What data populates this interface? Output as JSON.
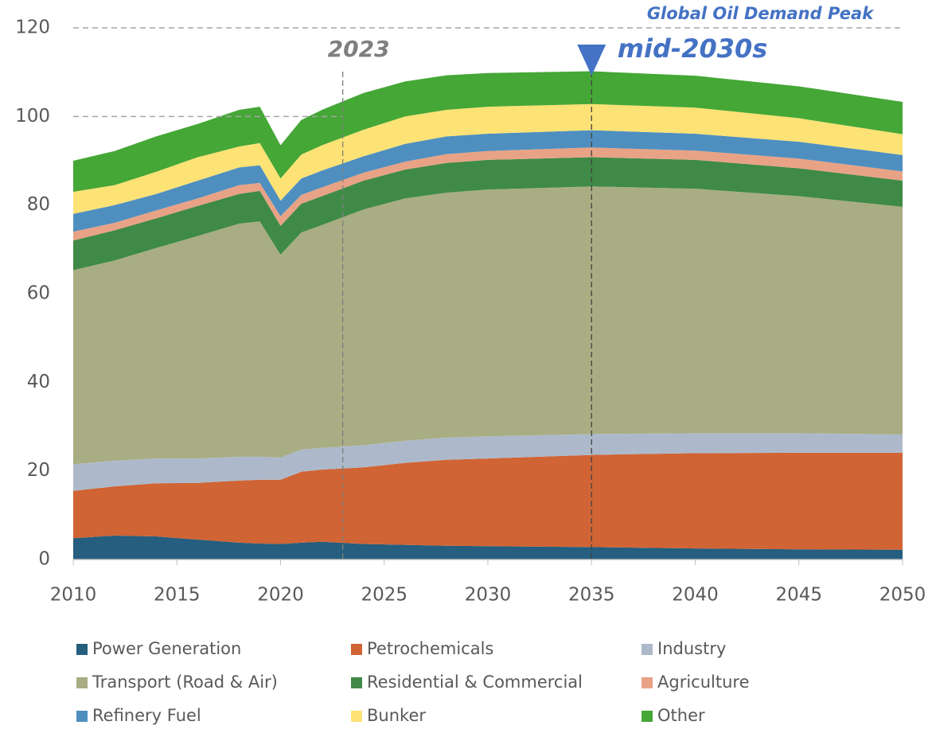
{
  "chart_data": {
    "type": "stacked_area",
    "x": [
      2010,
      2012,
      2014,
      2016,
      2018,
      2019,
      2020,
      2021,
      2022,
      2024,
      2026,
      2028,
      2030,
      2035,
      2040,
      2045,
      2050
    ],
    "series": [
      {
        "name": "Power Generation",
        "color": "#255e7e",
        "values": [
          4.8,
          5.4,
          5.2,
          4.5,
          3.8,
          3.6,
          3.5,
          3.8,
          4.0,
          3.5,
          3.3,
          3.1,
          3.0,
          2.8,
          2.5,
          2.3,
          2.2
        ]
      },
      {
        "name": "Petrochemicals",
        "color": "#d06434",
        "values": [
          10.7,
          11.1,
          12.0,
          12.8,
          14.0,
          14.4,
          14.5,
          16.0,
          16.3,
          17.3,
          18.5,
          19.4,
          19.8,
          20.8,
          21.5,
          21.8,
          21.9
        ]
      },
      {
        "name": "Industry",
        "color": "#adb9ca",
        "values": [
          6.0,
          5.8,
          5.6,
          5.5,
          5.4,
          5.2,
          5.0,
          5.0,
          4.9,
          5.0,
          5.0,
          5.0,
          5.0,
          4.7,
          4.5,
          4.4,
          4.1
        ]
      },
      {
        "name": "Transport (Road & Air)",
        "color": "#a9ad84",
        "values": [
          43.8,
          45.2,
          47.5,
          50.2,
          52.6,
          53.1,
          45.8,
          49.0,
          50.3,
          53.2,
          54.7,
          55.3,
          55.7,
          55.9,
          55.2,
          53.5,
          51.4
        ]
      },
      {
        "name": "Residential & Commercial",
        "color": "#3f8a47",
        "values": [
          6.7,
          6.8,
          6.7,
          6.8,
          6.7,
          6.9,
          6.5,
          6.5,
          6.5,
          6.5,
          6.5,
          6.7,
          6.7,
          6.6,
          6.5,
          6.3,
          5.9
        ]
      },
      {
        "name": "Agriculture",
        "color": "#e8a285",
        "values": [
          2.0,
          1.7,
          1.8,
          1.7,
          2.0,
          1.8,
          2.2,
          2.0,
          2.0,
          1.8,
          1.8,
          2.0,
          2.0,
          2.2,
          2.1,
          2.2,
          2.1
        ]
      },
      {
        "name": "Refinery Fuel",
        "color": "#4e8fc0",
        "values": [
          4.0,
          4.0,
          3.7,
          4.0,
          4.0,
          4.0,
          3.5,
          3.7,
          3.8,
          3.7,
          4.0,
          4.0,
          3.9,
          3.9,
          3.8,
          3.8,
          3.7
        ]
      },
      {
        "name": "Bunker",
        "color": "#fde275",
        "values": [
          5.0,
          4.5,
          5.0,
          5.3,
          4.7,
          5.0,
          5.0,
          5.4,
          5.7,
          6.0,
          6.2,
          6.0,
          6.1,
          5.9,
          5.9,
          5.3,
          4.7
        ]
      },
      {
        "name": "Other",
        "color": "#45a736",
        "values": [
          7.0,
          7.7,
          8.0,
          7.5,
          8.3,
          8.2,
          7.5,
          7.8,
          8.0,
          8.3,
          7.9,
          7.8,
          7.6,
          7.4,
          7.2,
          7.2,
          7.3
        ]
      }
    ],
    "xlim": [
      2010,
      2050
    ],
    "xticks": [
      2010,
      2015,
      2020,
      2025,
      2030,
      2035,
      2040,
      2045,
      2050
    ],
    "ylim": [
      0,
      120
    ],
    "yticks": [
      0,
      20,
      40,
      60,
      80,
      100,
      120
    ],
    "reference_lines": [
      120,
      100
    ],
    "annotations": [
      {
        "text": "2023",
        "x": 2023
      },
      {
        "text": "Global Oil Demand Peak",
        "subtext": "mid-2030s",
        "x": 2035
      }
    ],
    "legend": "bottom"
  }
}
